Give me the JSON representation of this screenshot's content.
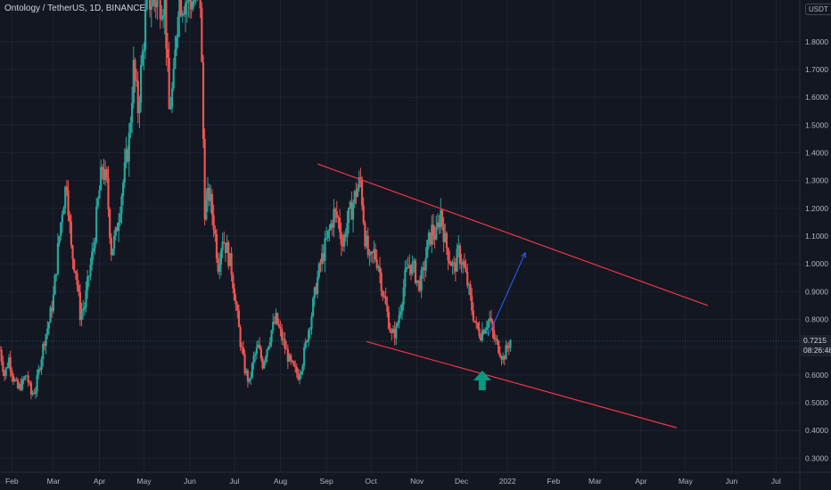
{
  "header": {
    "symbol": "Ontology / TetherUS, 1D, BINANCE",
    "currency": "USDT"
  },
  "price_tag": {
    "price": "0.7215",
    "countdown": "08:26:48"
  },
  "colors": {
    "background": "#131722",
    "up": "#26a69a",
    "down": "#ef5350",
    "trendline": "#f23645",
    "projection": "#2962ff",
    "arrow": "#089981"
  },
  "annotations": {
    "arrow_icon": "up-arrow-icon",
    "arrow_date": "2021-12-15",
    "arrow_value": 0.59,
    "projection_arrow": {
      "from": [
        "2021-12-19",
        0.74
      ],
      "to": [
        "2022-01-13",
        1.04
      ]
    },
    "upper_trendline": {
      "from": [
        "2021-08-26",
        1.36
      ],
      "to": [
        "2022-05-16",
        0.85
      ]
    },
    "lower_trendline": {
      "from": [
        "2021-09-28",
        0.72
      ],
      "to": [
        "2022-04-25",
        0.41
      ]
    }
  },
  "chart_data": {
    "type": "candlestick",
    "title": "Ontology / TetherUS, 1D, BINANCE",
    "ylim": [
      0.25,
      1.95
    ],
    "y_ticks": [
      1.8,
      1.7,
      1.6,
      1.5,
      1.4,
      1.3,
      1.2,
      1.1,
      1.0,
      0.9,
      0.8,
      0.7,
      0.6,
      0.5,
      0.4,
      0.3
    ],
    "y_tick_labels": [
      "1.8000",
      "1.7000",
      "1.6000",
      "1.5000",
      "1.4000",
      "1.3000",
      "1.2000",
      "1.1000",
      "1.0000",
      "0.9000",
      "0.8000",
      "0.7000",
      "0.6000",
      "0.5000",
      "0.4000",
      "0.3000"
    ],
    "x_range": [
      "2021-01-24",
      "2022-07-17"
    ],
    "x_ticks": [
      {
        "label": "Feb",
        "date": "2021-02-01"
      },
      {
        "label": "Mar",
        "date": "2021-03-01"
      },
      {
        "label": "Apr",
        "date": "2021-04-01"
      },
      {
        "label": "May",
        "date": "2021-05-01"
      },
      {
        "label": "Jun",
        "date": "2021-06-01"
      },
      {
        "label": "Jul",
        "date": "2021-07-01"
      },
      {
        "label": "Aug",
        "date": "2021-08-01"
      },
      {
        "label": "Sep",
        "date": "2021-09-01"
      },
      {
        "label": "Oct",
        "date": "2021-10-01"
      },
      {
        "label": "Nov",
        "date": "2021-11-01"
      },
      {
        "label": "Dec",
        "date": "2021-12-01"
      },
      {
        "label": "2022",
        "date": "2022-01-01"
      },
      {
        "label": "Feb",
        "date": "2022-02-01"
      },
      {
        "label": "Mar",
        "date": "2022-03-01"
      },
      {
        "label": "Apr",
        "date": "2022-04-01"
      },
      {
        "label": "May",
        "date": "2022-05-01"
      },
      {
        "label": "Jun",
        "date": "2022-06-01"
      },
      {
        "label": "Jul",
        "date": "2022-07-01"
      }
    ],
    "start_date": "2021-01-24",
    "closes": [
      0.69,
      0.6,
      0.66,
      0.59,
      0.55,
      0.57,
      0.6,
      0.53,
      0.55,
      0.64,
      0.73,
      0.79,
      0.88,
      1.05,
      1.2,
      1.3,
      1.05,
      0.98,
      0.82,
      0.85,
      0.96,
      1.06,
      1.22,
      1.35,
      1.28,
      1.05,
      1.1,
      1.22,
      1.33,
      1.45,
      1.7,
      1.56,
      1.75,
      1.95,
      1.95,
      1.95,
      1.95,
      1.95,
      1.55,
      1.65,
      1.95,
      1.95,
      1.95,
      1.95,
      1.95,
      1.95,
      1.2,
      1.25,
      1.15,
      1.0,
      1.1,
      1.05,
      0.98,
      0.85,
      0.72,
      0.62,
      0.57,
      0.66,
      0.7,
      0.64,
      0.7,
      0.76,
      0.8,
      0.75,
      0.7,
      0.65,
      0.62,
      0.6,
      0.65,
      0.74,
      0.82,
      0.92,
      1.0,
      1.06,
      1.12,
      1.18,
      1.16,
      1.07,
      1.15,
      1.2,
      1.26,
      1.3,
      1.1,
      1.0,
      1.04,
      1.0,
      0.9,
      0.82,
      0.74,
      0.76,
      0.85,
      0.95,
      1.0,
      0.98,
      0.92,
      0.96,
      1.06,
      1.12,
      1.1,
      1.19,
      1.08,
      1.02,
      0.98,
      1.04,
      1.0,
      0.93,
      0.84,
      0.77,
      0.75,
      0.78,
      0.8,
      0.73,
      0.7,
      0.66,
      0.7,
      0.74
    ],
    "current_price": 0.7215,
    "xlabel": "",
    "ylabel": "",
    "grid": true
  }
}
